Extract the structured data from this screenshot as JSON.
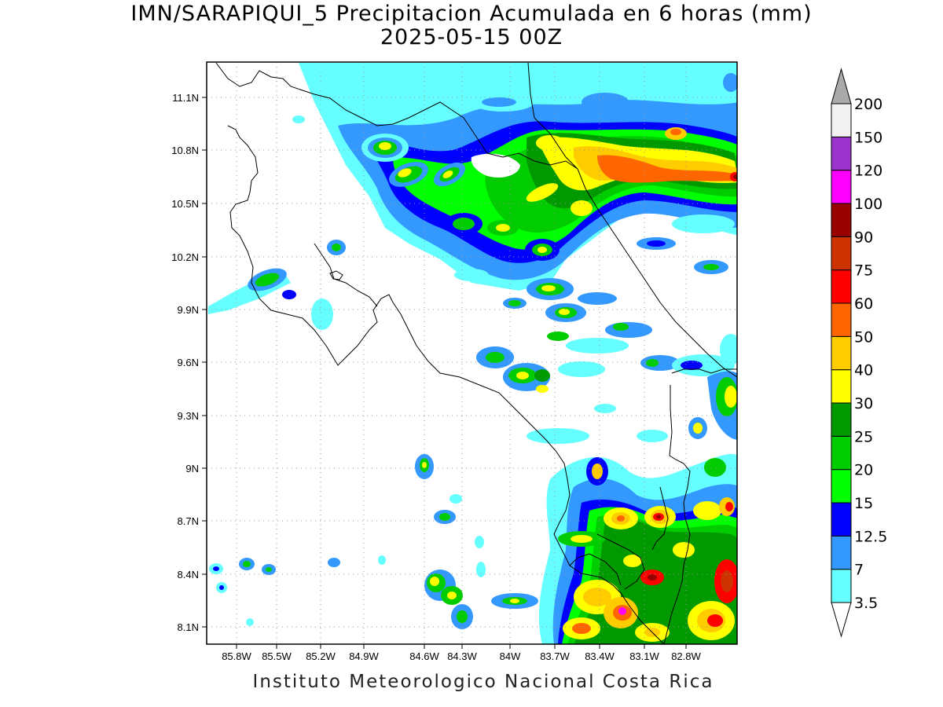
{
  "title_line1": "IMN/SARAPIQUI_5 Precipitacion Acumulada en 6 horas (mm)",
  "title_line2": "2025-05-15 00Z",
  "footer": "Instituto Meteorologico Nacional Costa Rica",
  "map": {
    "lon_range": [
      -86.05,
      -83.05
    ],
    "lat_range": [
      8.0,
      11.3
    ],
    "lon_ticks": [
      "85.8W",
      "85.5W",
      "85.2W",
      "84.9W",
      "84.6W",
      "84.3W",
      "84W",
      "83.7W",
      "83.4W",
      "83.1W",
      "82.8W"
    ],
    "lat_ticks": [
      "11.1N",
      "10.8N",
      "10.5N",
      "10.2N",
      "9.9N",
      "9.6N",
      "9.3N",
      "9N",
      "8.7N",
      "8.4N",
      "8.1N"
    ],
    "grid": "dotted",
    "variable_units": "mm"
  },
  "colorbar": {
    "levels": [
      "3.5",
      "7",
      "12.5",
      "15",
      "20",
      "25",
      "30",
      "40",
      "50",
      "60",
      "75",
      "90",
      "100",
      "120",
      "150",
      "200"
    ],
    "colors": [
      "#66ffff",
      "#3399ff",
      "#0000ff",
      "#00ff00",
      "#00cc00",
      "#009900",
      "#ffff00",
      "#ffcc00",
      "#ff6600",
      "#ff0000",
      "#cc3300",
      "#990000",
      "#ff00ff",
      "#9933cc",
      "#f2f2f2",
      "#aaaaaa"
    ],
    "below_color": "#ffffff",
    "above_color": "#aaaaaa"
  }
}
